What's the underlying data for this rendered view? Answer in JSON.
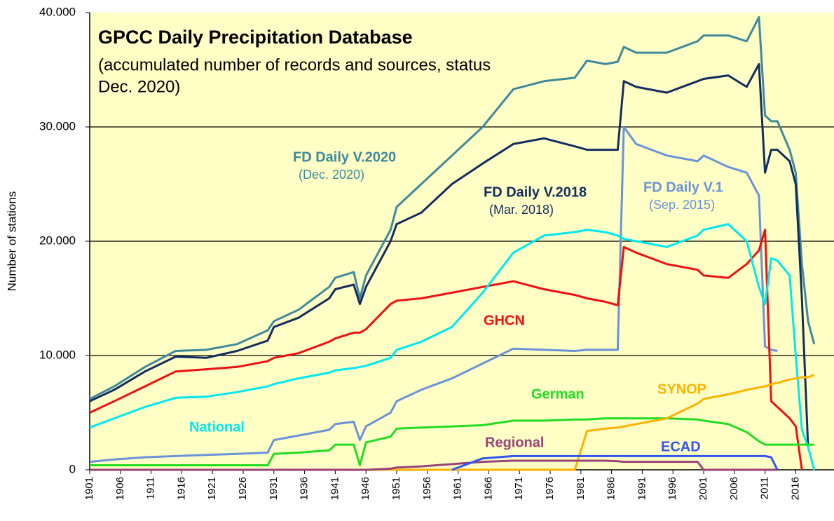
{
  "chart_data": {
    "type": "line",
    "title": "GPCC Daily Precipitation Database",
    "subtitle": [
      "(accumulated number of records and sources, status",
      "Dec. 2020)"
    ],
    "y_label": "Number of stations",
    "background": "#ffffc6",
    "grid": true,
    "xlim": [
      1901,
      2022
    ],
    "xticks": [
      1901,
      1906,
      1911,
      1916,
      1921,
      1926,
      1931,
      1936,
      1941,
      1946,
      1951,
      1956,
      1961,
      1966,
      1971,
      1976,
      1981,
      1986,
      1991,
      1996,
      2001,
      2006,
      2011,
      2016
    ],
    "ylim": [
      0,
      40000
    ],
    "yticks": [
      0,
      {
        "value": 10000,
        "label": "10.000"
      },
      {
        "value": 20000,
        "label": "20.000"
      },
      {
        "value": 30000,
        "label": "30.000"
      },
      {
        "value": 40000,
        "label": "40.000"
      }
    ],
    "x": [
      1901,
      1905,
      1910,
      1915,
      1920,
      1925,
      1930,
      1931,
      1935,
      1940,
      1941,
      1944,
      1945,
      1946,
      1950,
      1951,
      1955,
      1960,
      1965,
      1970,
      1975,
      1980,
      1982,
      1985,
      1987,
      1988,
      1990,
      1995,
      2000,
      2001,
      2005,
      2008,
      2010,
      2011,
      2012,
      2013,
      2015,
      2016,
      2017,
      2018,
      2019
    ],
    "series": [
      {
        "name": "FD Daily V.2020",
        "note": "(Dec. 2020)",
        "color": "#3f8a9a",
        "values": [
          6200,
          7300,
          9000,
          10400,
          10500,
          11000,
          12200,
          13000,
          14000,
          16000,
          16800,
          17300,
          15000,
          17000,
          21000,
          23000,
          25000,
          27500,
          30000,
          33300,
          34000,
          34300,
          35800,
          35500,
          35700,
          37000,
          36500,
          36500,
          37500,
          38000,
          38000,
          37500,
          39600,
          31000,
          30500,
          30500,
          28000,
          26000,
          18000,
          13000,
          11000
        ]
      },
      {
        "name": "FD Daily V.2018",
        "note": "(Mar. 2018)",
        "color": "#142c5e",
        "values": [
          6000,
          7000,
          8600,
          9900,
          9800,
          10400,
          11300,
          12500,
          13300,
          15000,
          15800,
          16200,
          14500,
          16000,
          20000,
          21500,
          22500,
          25000,
          26800,
          28500,
          29000,
          28300,
          28000,
          28000,
          28000,
          34000,
          33500,
          33000,
          34000,
          34200,
          34500,
          33500,
          35500,
          26000,
          28000,
          28000,
          27000,
          25000,
          15000,
          2000,
          null
        ]
      },
      {
        "name": "FD Daily V.1",
        "note": "(Sep. 2015)",
        "color": "#6a93d8",
        "values": [
          700,
          900,
          1100,
          1200,
          1300,
          1400,
          1500,
          2600,
          3000,
          3500,
          4000,
          4200,
          2600,
          3800,
          5000,
          6000,
          7000,
          8000,
          9300,
          10600,
          10500,
          10400,
          10500,
          10500,
          10500,
          30000,
          28500,
          27500,
          27000,
          27500,
          26500,
          26000,
          24000,
          10800,
          10500,
          10400,
          null,
          null,
          null,
          null,
          null
        ]
      },
      {
        "name": "GHCN",
        "color": "#ee1111",
        "values": [
          5000,
          6000,
          7300,
          8600,
          8800,
          9000,
          9500,
          9800,
          10200,
          11200,
          11500,
          12000,
          12000,
          12300,
          14500,
          14800,
          15000,
          15500,
          16000,
          16500,
          15800,
          15300,
          15000,
          14700,
          14400,
          19500,
          19000,
          18000,
          17500,
          17000,
          16800,
          18000,
          19200,
          21000,
          6000,
          5500,
          4500,
          3800,
          0,
          null,
          null
        ]
      },
      {
        "name": "National",
        "color": "#00e8f0",
        "values": [
          3700,
          4500,
          5500,
          6300,
          6400,
          6800,
          7300,
          7500,
          8000,
          8500,
          8700,
          8900,
          9000,
          9100,
          9800,
          10500,
          11200,
          12500,
          15500,
          19000,
          20500,
          20800,
          21000,
          20800,
          20500,
          20200,
          20000,
          19500,
          20500,
          21000,
          21500,
          20000,
          16000,
          14500,
          18500,
          18300,
          17000,
          10000,
          3500,
          2000,
          0
        ]
      },
      {
        "name": "German",
        "color": "#22dd22",
        "values": [
          400,
          400,
          400,
          400,
          400,
          400,
          400,
          1400,
          1500,
          1700,
          2200,
          2200,
          400,
          2400,
          2900,
          3600,
          3700,
          3800,
          3900,
          4300,
          4300,
          4400,
          4400,
          4500,
          4500,
          4500,
          4500,
          4500,
          4400,
          4300,
          4000,
          3300,
          2500,
          2200,
          2200,
          2200,
          2200,
          2200,
          2200,
          2200,
          2200
        ]
      },
      {
        "name": "SYNOP",
        "color": "#ffb300",
        "values": [
          0,
          0,
          0,
          0,
          0,
          0,
          0,
          0,
          0,
          0,
          0,
          0,
          0,
          0,
          0,
          0,
          0,
          0,
          0,
          0,
          0,
          0,
          3400,
          3600,
          3700,
          3800,
          4000,
          4500,
          5800,
          6200,
          6600,
          7000,
          7200,
          7300,
          7500,
          7600,
          7900,
          8000,
          8100,
          8100,
          8300
        ]
      },
      {
        "name": "Regional",
        "color": "#994477",
        "values": [
          0,
          0,
          0,
          0,
          0,
          0,
          0,
          0,
          0,
          0,
          0,
          0,
          0,
          0,
          100,
          200,
          300,
          500,
          700,
          800,
          800,
          800,
          800,
          800,
          750,
          700,
          700,
          700,
          700,
          0,
          0,
          0,
          0,
          0,
          0,
          0,
          null,
          null,
          null,
          null,
          null
        ]
      },
      {
        "name": "ECAD",
        "color": "#3355ee",
        "values": [
          null,
          null,
          null,
          null,
          null,
          null,
          null,
          null,
          null,
          null,
          null,
          null,
          null,
          null,
          null,
          null,
          null,
          0,
          1000,
          1200,
          1200,
          1200,
          1200,
          1200,
          1200,
          1200,
          1200,
          1200,
          1200,
          1200,
          1200,
          1200,
          1200,
          1200,
          1100,
          0,
          null,
          null,
          null,
          null,
          null
        ]
      }
    ]
  }
}
